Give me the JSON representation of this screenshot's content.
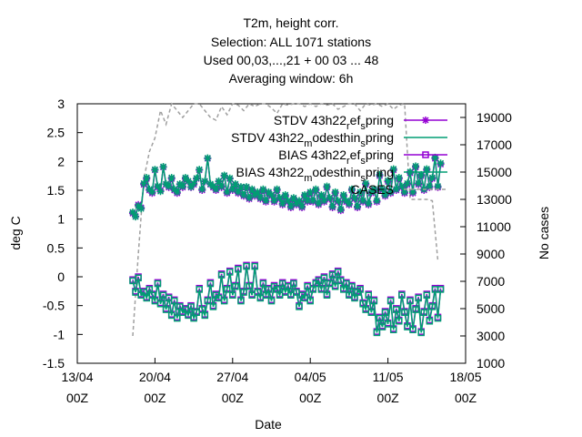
{
  "chart_data": {
    "type": "line",
    "title_lines": [
      "T2m, height corr.",
      "Selection: ALL   1071 stations",
      "Used  00,03,...,21  + 00 03 ... 48",
      "Averaging window:  6h"
    ],
    "xlabel": "Date",
    "ylabel": "deg C",
    "y2label": "No cases",
    "xlim": [
      "13/04",
      "18/05"
    ],
    "ylim": [
      -1.5,
      3
    ],
    "y2lim": [
      1000,
      20000
    ],
    "x_ticks": [
      {
        "line1": "13/04",
        "line2": "00Z"
      },
      {
        "line1": "20/04",
        "line2": "00Z"
      },
      {
        "line1": "27/04",
        "line2": "00Z"
      },
      {
        "line1": "04/05",
        "line2": "00Z"
      },
      {
        "line1": "11/05",
        "line2": "00Z"
      },
      {
        "line1": "18/05",
        "line2": "00Z"
      }
    ],
    "y_ticks": [
      "-1.5",
      "-1",
      "-0.5",
      "0",
      "0.5",
      "1",
      "1.5",
      "2",
      "2.5",
      "3"
    ],
    "y2_ticks": [
      "1000",
      "3000",
      "5000",
      "7000",
      "9000",
      "11000",
      "13000",
      "15000",
      "17000",
      "19000"
    ],
    "legend_position": "top-right",
    "legend": [
      {
        "base": "STDV 43h22",
        "sub1": "r",
        "mid": "ef",
        "sub2": "s",
        "tail": "pring"
      },
      {
        "base": "STDV 43h22",
        "sub1": "m",
        "mid": "odesthin",
        "sub2": "s",
        "tail": "pring"
      },
      {
        "base": "BIAS 43h22",
        "sub1": "r",
        "mid": "ef",
        "sub2": "s",
        "tail": "pring"
      },
      {
        "base": "BIAS 43h22",
        "sub1": "m",
        "mid": "odesthin",
        "sub2": "s",
        "tail": "pring"
      },
      {
        "base": "CASES",
        "sub1": "",
        "mid": "",
        "sub2": "",
        "tail": ""
      }
    ],
    "colors": {
      "stdv_ref": "#9400d3",
      "stdv_mod": "#009e73",
      "bias_ref": "#9400d3",
      "bias_mod": "#009e73",
      "cases": "#a0a0a0"
    },
    "x_units": "days since 13/04 00Z",
    "stdv_ref_x": [
      5,
      5.25,
      5.5,
      5.75,
      6,
      6.25,
      6.5,
      6.75,
      7,
      7.25,
      7.5,
      7.75,
      8,
      8.25,
      8.5,
      8.75,
      9,
      9.25,
      9.5,
      9.75,
      10,
      10.25,
      10.5,
      10.75,
      11,
      11.25,
      11.5,
      11.75,
      12,
      12.25,
      12.5,
      12.75,
      13,
      13.25,
      13.5,
      13.75,
      14,
      14.25,
      14.5,
      14.75,
      15,
      15.25,
      15.5,
      15.75,
      16,
      16.25,
      16.5,
      16.75,
      17,
      17.25,
      17.5,
      17.75,
      18,
      18.25,
      18.5,
      18.75,
      19,
      19.25,
      19.5,
      19.75,
      20,
      20.25,
      20.5,
      20.75,
      21,
      21.25,
      21.5,
      21.75,
      22,
      22.25,
      22.5,
      22.75,
      23,
      23.25,
      23.5,
      23.75,
      24,
      24.25,
      24.5,
      24.75,
      25,
      25.25,
      25.5,
      25.75,
      26,
      26.25,
      26.5,
      26.75,
      27,
      27.25,
      27.5,
      27.75,
      28,
      28.25,
      28.5,
      28.75,
      29,
      29.25,
      29.5,
      29.75,
      30,
      30.25,
      30.5,
      30.75,
      31,
      31.25,
      31.5,
      31.75,
      32,
      32.25,
      32.5,
      32.75
    ],
    "stdv_ref": [
      1.1,
      1.05,
      1.25,
      1.2,
      1.6,
      1.7,
      1.5,
      1.45,
      1.85,
      1.55,
      1.5,
      1.9,
      1.6,
      1.55,
      1.7,
      1.5,
      1.45,
      1.6,
      1.55,
      1.7,
      1.65,
      1.55,
      1.6,
      1.7,
      1.85,
      1.5,
      1.65,
      2.05,
      1.6,
      1.55,
      1.5,
      1.65,
      1.55,
      1.75,
      1.45,
      1.7,
      1.5,
      1.6,
      1.45,
      1.55,
      1.4,
      1.55,
      1.35,
      1.5,
      1.4,
      1.45,
      1.35,
      1.5,
      1.3,
      1.45,
      1.4,
      1.3,
      1.5,
      1.35,
      1.25,
      1.4,
      1.3,
      1.2,
      1.35,
      1.25,
      1.3,
      1.2,
      1.4,
      1.3,
      1.45,
      1.3,
      1.5,
      1.25,
      1.4,
      1.3,
      1.55,
      1.35,
      1.2,
      1.45,
      1.3,
      1.15,
      1.4,
      1.3,
      1.25,
      1.5,
      1.35,
      1.2,
      1.45,
      1.3,
      1.6,
      1.25,
      1.45,
      1.5,
      1.3,
      1.75,
      1.5,
      1.4,
      1.65,
      1.45,
      1.85,
      1.5,
      1.7,
      1.55,
      1.45,
      1.6,
      1.8,
      1.45,
      1.9,
      1.6,
      1.75,
      1.5,
      1.85,
      1.55,
      1.7,
      2.05,
      1.55,
      1.95
    ],
    "stdv_mod": [
      1.12,
      1.04,
      1.23,
      1.18,
      1.62,
      1.72,
      1.52,
      1.47,
      1.86,
      1.57,
      1.48,
      1.91,
      1.61,
      1.57,
      1.72,
      1.52,
      1.47,
      1.61,
      1.57,
      1.72,
      1.66,
      1.56,
      1.62,
      1.71,
      1.86,
      1.52,
      1.66,
      2.06,
      1.61,
      1.57,
      1.52,
      1.66,
      1.57,
      1.76,
      1.47,
      1.71,
      1.52,
      1.61,
      1.47,
      1.56,
      1.42,
      1.56,
      1.37,
      1.52,
      1.42,
      1.47,
      1.37,
      1.52,
      1.32,
      1.47,
      1.42,
      1.32,
      1.52,
      1.37,
      1.27,
      1.42,
      1.32,
      1.22,
      1.37,
      1.27,
      1.32,
      1.22,
      1.42,
      1.32,
      1.47,
      1.32,
      1.52,
      1.27,
      1.42,
      1.32,
      1.57,
      1.37,
      1.22,
      1.47,
      1.32,
      1.17,
      1.42,
      1.32,
      1.27,
      1.52,
      1.37,
      1.22,
      1.47,
      1.32,
      1.62,
      1.27,
      1.47,
      1.52,
      1.32,
      1.77,
      1.52,
      1.42,
      1.67,
      1.47,
      1.87,
      1.52,
      1.72,
      1.57,
      1.47,
      1.62,
      1.82,
      1.47,
      1.92,
      1.62,
      1.77,
      1.52,
      1.87,
      1.57,
      1.72,
      2.07,
      1.57,
      1.97
    ],
    "bias_ref": [
      -0.05,
      -0.25,
      0,
      -0.3,
      -0.25,
      -0.35,
      -0.2,
      -0.3,
      -0.4,
      -0.1,
      -0.45,
      -0.3,
      -0.55,
      -0.35,
      -0.65,
      -0.4,
      -0.7,
      -0.5,
      -0.6,
      -0.55,
      -0.65,
      -0.5,
      -0.7,
      -0.6,
      -0.2,
      -0.55,
      -0.65,
      -0.4,
      -0.1,
      -0.5,
      -0.3,
      -0.35,
      0.05,
      -0.4,
      -0.2,
      0.1,
      -0.3,
      -0.15,
      0.15,
      -0.4,
      -0.25,
      0.2,
      -0.15,
      -0.3,
      0.2,
      -0.25,
      -0.35,
      -0.1,
      -0.3,
      -0.2,
      -0.4,
      -0.15,
      -0.2,
      -0.3,
      -0.1,
      -0.25,
      -0.15,
      -0.3,
      -0.1,
      -0.25,
      -0.5,
      -0.3,
      -0.35,
      -0.15,
      -0.4,
      -0.2,
      -0.1,
      -0.05,
      -0.2,
      0.0,
      -0.3,
      -0.1,
      0.05,
      -0.15,
      0.1,
      -0.05,
      -0.2,
      -0.1,
      -0.3,
      -0.15,
      -0.35,
      -0.25,
      -0.2,
      -0.45,
      -0.55,
      -0.3,
      -0.6,
      -0.4,
      -0.95,
      -0.7,
      -0.85,
      -0.6,
      -0.8,
      -0.4,
      -0.9,
      -0.55,
      -0.75,
      -0.3,
      -0.6,
      -0.85,
      -0.4,
      -0.9,
      -0.55,
      -0.35,
      -0.95,
      -0.6,
      -0.3,
      -0.75,
      -0.5,
      -0.2,
      -0.7,
      -0.2
    ],
    "bias_mod": [
      -0.07,
      -0.27,
      -0.02,
      -0.32,
      -0.27,
      -0.37,
      -0.22,
      -0.32,
      -0.42,
      -0.12,
      -0.47,
      -0.32,
      -0.57,
      -0.37,
      -0.67,
      -0.42,
      -0.72,
      -0.52,
      -0.62,
      -0.57,
      -0.67,
      -0.52,
      -0.72,
      -0.62,
      -0.22,
      -0.57,
      -0.67,
      -0.42,
      -0.12,
      -0.52,
      -0.32,
      -0.37,
      0.03,
      -0.42,
      -0.22,
      0.08,
      -0.32,
      -0.17,
      0.13,
      -0.42,
      -0.27,
      0.18,
      -0.17,
      -0.32,
      0.18,
      -0.27,
      -0.37,
      -0.12,
      -0.32,
      -0.22,
      -0.42,
      -0.17,
      -0.22,
      -0.32,
      -0.12,
      -0.27,
      -0.17,
      -0.32,
      -0.12,
      -0.27,
      -0.52,
      -0.32,
      -0.37,
      -0.17,
      -0.42,
      -0.22,
      -0.12,
      -0.07,
      -0.22,
      -0.02,
      -0.32,
      -0.12,
      0.03,
      -0.17,
      0.08,
      -0.07,
      -0.22,
      -0.12,
      -0.32,
      -0.17,
      -0.37,
      -0.27,
      -0.22,
      -0.47,
      -0.57,
      -0.32,
      -0.62,
      -0.42,
      -0.97,
      -0.72,
      -0.87,
      -0.62,
      -0.82,
      -0.42,
      -0.92,
      -0.57,
      -0.77,
      -0.32,
      -0.62,
      -0.87,
      -0.42,
      -0.92,
      -0.57,
      -0.37,
      -0.97,
      -0.62,
      -0.32,
      -0.77,
      -0.52,
      -0.22,
      -0.72,
      -0.22
    ],
    "cases_x": [
      5,
      5.5,
      6,
      6.5,
      7,
      7.5,
      8,
      8.5,
      9,
      9.5,
      10,
      10.5,
      11,
      11.5,
      12,
      12.5,
      13,
      13.5,
      14,
      14.5,
      15,
      15.5,
      16,
      16.5,
      17,
      17.5,
      18,
      18.5,
      19,
      19.5,
      20,
      20.5,
      21,
      21.5,
      22,
      22.5,
      23,
      23.5,
      24,
      24.5,
      25,
      25.5,
      26,
      26.5,
      27,
      27.5,
      28,
      28.5,
      29,
      29.5,
      30,
      30.5,
      31,
      31.5,
      32,
      32.5
    ],
    "cases": [
      3000,
      9000,
      14500,
      16500,
      17500,
      19500,
      18500,
      20000,
      19500,
      19000,
      19500,
      20000,
      20000,
      19500,
      19000,
      18800,
      19800,
      19200,
      20000,
      19900,
      19500,
      20000,
      19800,
      20000,
      20000,
      19700,
      19300,
      20000,
      19900,
      20000,
      20000,
      19800,
      20000,
      19800,
      20000,
      19900,
      20000,
      19600,
      19800,
      20000,
      20000,
      19500,
      20000,
      19900,
      20000,
      19800,
      20000,
      19600,
      19900,
      20000,
      13000,
      13000,
      13000,
      13000,
      12900,
      8500
    ]
  }
}
